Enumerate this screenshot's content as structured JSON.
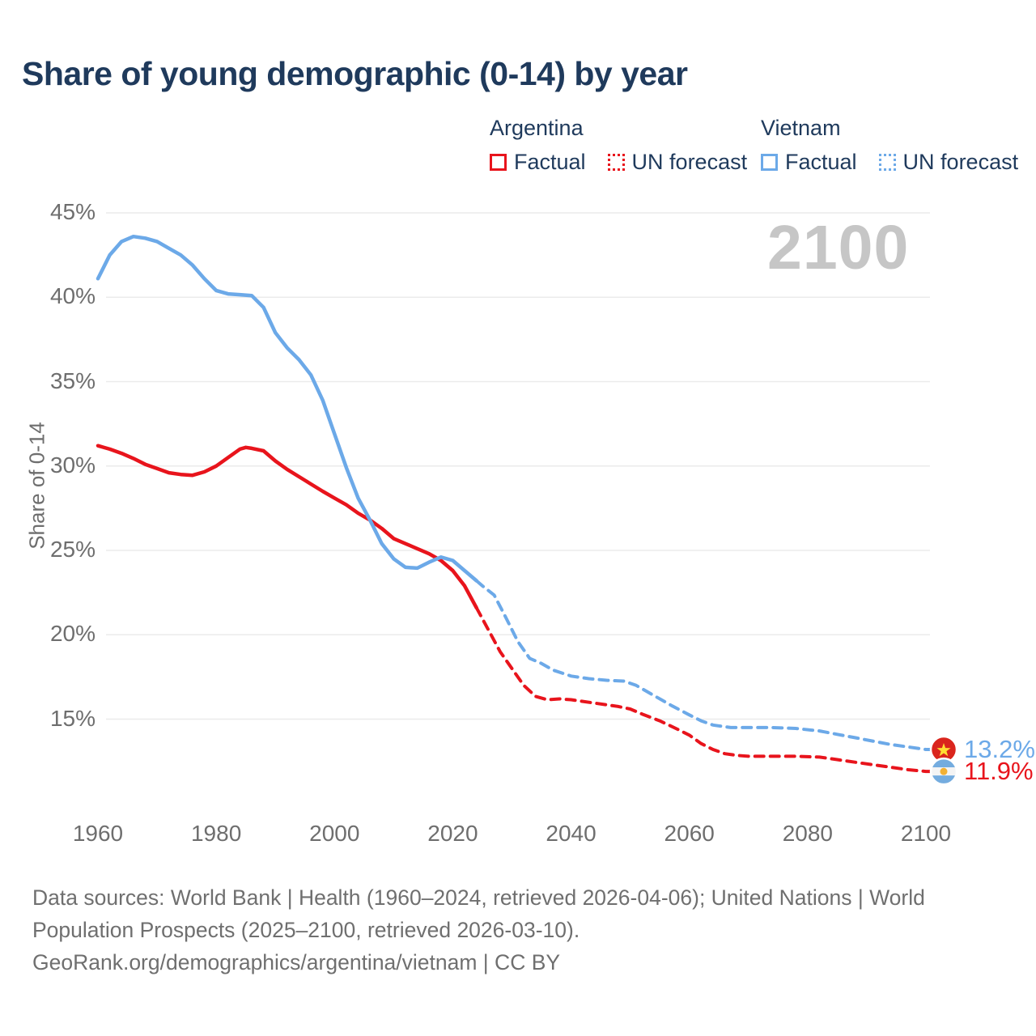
{
  "title": "Share of young demographic (0-14) by year",
  "watermark": "2100",
  "legend": {
    "groups": [
      {
        "label": "Argentina",
        "color": "#e8141c",
        "items": [
          {
            "label": "Factual",
            "style": "solid"
          },
          {
            "label": "UN forecast",
            "style": "dotted"
          }
        ]
      },
      {
        "label": "Vietnam",
        "color": "#6ca9e8",
        "items": [
          {
            "label": "Factual",
            "style": "solid"
          },
          {
            "label": "UN forecast",
            "style": "dotted"
          }
        ]
      }
    ]
  },
  "axes": {
    "y_title": "Share of 0-14",
    "y_ticks": [
      45,
      40,
      35,
      30,
      25,
      20,
      15
    ],
    "y_tick_suffix": "%",
    "x_ticks": [
      1960,
      1980,
      2000,
      2020,
      2040,
      2060,
      2080,
      2100
    ]
  },
  "footer": {
    "lines": [
      "Data sources: World Bank | Health (1960–2024, retrieved 2026-04-06); United Nations | World",
      "Population Prospects (2025–2100, retrieved 2026-03-10).",
      "GeoRank.org/demographics/argentina/vietnam | CC BY"
    ]
  },
  "colors": {
    "argentina": "#e8141c",
    "vietnam": "#6ca9e8",
    "title_text": "#1f3a5c",
    "axis_text": "#6e6e6e",
    "gridline": "#ebebeb",
    "watermark": "#c6c6c6",
    "vietnam_flag_red": "#da251d",
    "vietnam_flag_star": "#ffde33",
    "argentina_flag_blue": "#74acdf",
    "argentina_flag_sun": "#f2b135"
  },
  "chart_data": {
    "type": "line",
    "title": "Share of young demographic (0-14) by year",
    "xlabel": "",
    "ylabel": "Share of 0-14",
    "x_range": [
      1960,
      2100
    ],
    "y_gridlines": [
      15,
      20,
      25,
      30,
      35,
      40,
      45
    ],
    "ylim": [
      11,
      46
    ],
    "grid": "horizontal-only",
    "legend_position": "top-right",
    "series": [
      {
        "name": "Argentina Factual",
        "country": "argentina",
        "kind": "factual",
        "dash": false,
        "color": "#e8141c",
        "points": [
          [
            1960,
            31.2
          ],
          [
            1962,
            31.0
          ],
          [
            1964,
            30.75
          ],
          [
            1966,
            30.45
          ],
          [
            1968,
            30.1
          ],
          [
            1970,
            29.85
          ],
          [
            1972,
            29.6
          ],
          [
            1974,
            29.5
          ],
          [
            1976,
            29.45
          ],
          [
            1978,
            29.65
          ],
          [
            1980,
            30.0
          ],
          [
            1982,
            30.5
          ],
          [
            1984,
            31.0
          ],
          [
            1985,
            31.1
          ],
          [
            1986,
            31.05
          ],
          [
            1988,
            30.9
          ],
          [
            1990,
            30.3
          ],
          [
            1992,
            29.8
          ],
          [
            1995,
            29.15
          ],
          [
            1998,
            28.5
          ],
          [
            2000,
            28.1
          ],
          [
            2002,
            27.7
          ],
          [
            2004,
            27.2
          ],
          [
            2006,
            26.8
          ],
          [
            2008,
            26.3
          ],
          [
            2010,
            25.7
          ],
          [
            2012,
            25.4
          ],
          [
            2014,
            25.1
          ],
          [
            2016,
            24.8
          ],
          [
            2018,
            24.4
          ],
          [
            2020,
            23.8
          ],
          [
            2022,
            22.9
          ],
          [
            2024,
            21.6
          ]
        ]
      },
      {
        "name": "Argentina UN forecast",
        "country": "argentina",
        "kind": "forecast",
        "dash": true,
        "color": "#e8141c",
        "points": [
          [
            2024,
            21.6
          ],
          [
            2026,
            20.3
          ],
          [
            2028,
            19.0
          ],
          [
            2030,
            18.0
          ],
          [
            2032,
            17.0
          ],
          [
            2034,
            16.35
          ],
          [
            2036,
            16.15
          ],
          [
            2038,
            16.2
          ],
          [
            2040,
            16.15
          ],
          [
            2042,
            16.05
          ],
          [
            2044,
            15.95
          ],
          [
            2046,
            15.85
          ],
          [
            2048,
            15.75
          ],
          [
            2050,
            15.6
          ],
          [
            2052,
            15.3
          ],
          [
            2055,
            14.9
          ],
          [
            2058,
            14.4
          ],
          [
            2060,
            14.05
          ],
          [
            2062,
            13.55
          ],
          [
            2064,
            13.2
          ],
          [
            2066,
            12.95
          ],
          [
            2068,
            12.85
          ],
          [
            2070,
            12.8
          ],
          [
            2074,
            12.8
          ],
          [
            2078,
            12.8
          ],
          [
            2082,
            12.75
          ],
          [
            2085,
            12.6
          ],
          [
            2088,
            12.45
          ],
          [
            2091,
            12.3
          ],
          [
            2094,
            12.15
          ],
          [
            2097,
            12.0
          ],
          [
            2100,
            11.9
          ]
        ]
      },
      {
        "name": "Vietnam Factual",
        "country": "vietnam",
        "kind": "factual",
        "dash": false,
        "color": "#6ca9e8",
        "points": [
          [
            1960,
            41.1
          ],
          [
            1962,
            42.5
          ],
          [
            1964,
            43.3
          ],
          [
            1966,
            43.6
          ],
          [
            1968,
            43.5
          ],
          [
            1970,
            43.3
          ],
          [
            1972,
            42.9
          ],
          [
            1974,
            42.5
          ],
          [
            1976,
            41.9
          ],
          [
            1978,
            41.1
          ],
          [
            1980,
            40.4
          ],
          [
            1982,
            40.2
          ],
          [
            1984,
            40.15
          ],
          [
            1986,
            40.1
          ],
          [
            1988,
            39.4
          ],
          [
            1990,
            37.9
          ],
          [
            1992,
            37.0
          ],
          [
            1994,
            36.3
          ],
          [
            1996,
            35.4
          ],
          [
            1998,
            33.9
          ],
          [
            2000,
            31.9
          ],
          [
            2002,
            29.9
          ],
          [
            2004,
            28.1
          ],
          [
            2006,
            26.8
          ],
          [
            2008,
            25.4
          ],
          [
            2010,
            24.5
          ],
          [
            2012,
            24.0
          ],
          [
            2014,
            23.95
          ],
          [
            2016,
            24.3
          ],
          [
            2018,
            24.6
          ],
          [
            2020,
            24.4
          ],
          [
            2022,
            23.8
          ],
          [
            2024,
            23.2
          ]
        ]
      },
      {
        "name": "Vietnam UN forecast",
        "country": "vietnam",
        "kind": "forecast",
        "dash": true,
        "color": "#6ca9e8",
        "points": [
          [
            2024,
            23.2
          ],
          [
            2025,
            22.9
          ],
          [
            2027,
            22.35
          ],
          [
            2029,
            21.0
          ],
          [
            2031,
            19.6
          ],
          [
            2033,
            18.6
          ],
          [
            2035,
            18.3
          ],
          [
            2037,
            17.9
          ],
          [
            2040,
            17.55
          ],
          [
            2043,
            17.4
          ],
          [
            2046,
            17.3
          ],
          [
            2049,
            17.25
          ],
          [
            2051,
            17.0
          ],
          [
            2054,
            16.4
          ],
          [
            2057,
            15.8
          ],
          [
            2060,
            15.25
          ],
          [
            2062,
            14.9
          ],
          [
            2064,
            14.65
          ],
          [
            2067,
            14.5
          ],
          [
            2070,
            14.5
          ],
          [
            2074,
            14.5
          ],
          [
            2078,
            14.45
          ],
          [
            2082,
            14.3
          ],
          [
            2085,
            14.1
          ],
          [
            2088,
            13.9
          ],
          [
            2091,
            13.7
          ],
          [
            2094,
            13.5
          ],
          [
            2097,
            13.35
          ],
          [
            2100,
            13.2
          ]
        ]
      }
    ],
    "end_labels": [
      {
        "country": "vietnam",
        "text": "13.2%",
        "value": 13.2,
        "color": "#6ca9e8",
        "flag": "vietnam-flag"
      },
      {
        "country": "argentina",
        "text": "11.9%",
        "value": 11.9,
        "color": "#e8141c",
        "flag": "argentina-flag"
      }
    ]
  }
}
